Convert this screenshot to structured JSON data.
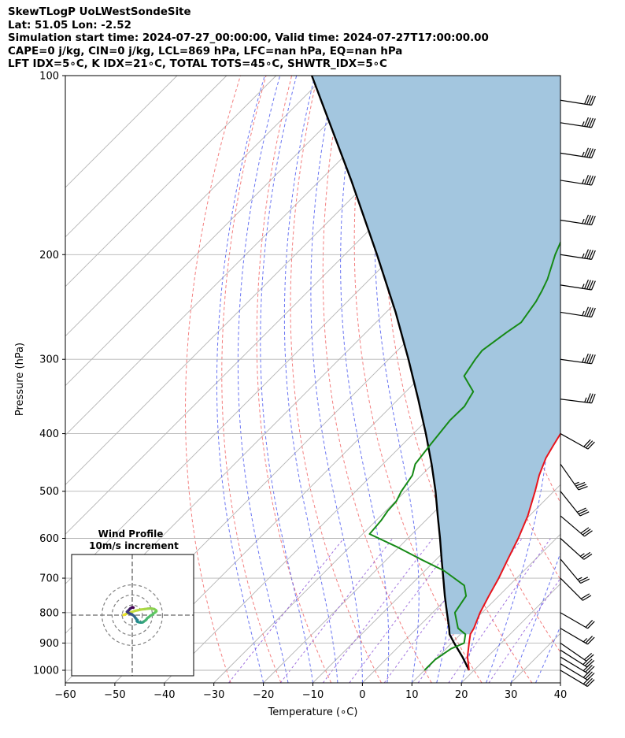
{
  "header": {
    "line1": "SkewTLogP UoLWestSondeSite",
    "line2": "Lat: 51.05   Lon: -2.52",
    "line3": "Simulation start time: 2024-07-27_00:00:00, Valid time: 2024-07-27T17:00:00.00",
    "line4": "CAPE=0 j/kg, CIN=0 j/kg, LCL=869 hPa, LFC=nan hPa, EQ=nan hPa",
    "line5": "LFT IDX=5∘C, K IDX=21∘C, TOTAL TOTS=45∘C, SHWTR_IDX=5∘C"
  },
  "chart_data": {
    "type": "skewt",
    "xlabel": "Temperature (∘C)",
    "ylabel": "Pressure (hPa)",
    "x_ticks": [
      -60,
      -50,
      -40,
      -30,
      -20,
      -10,
      0,
      10,
      20,
      30,
      40
    ],
    "x_tick_labels": [
      "−60",
      "−50",
      "−40",
      "−30",
      "−20",
      "−10",
      "0",
      "10",
      "20",
      "30",
      "40"
    ],
    "y_ticks": [
      100,
      200,
      300,
      400,
      500,
      600,
      700,
      800,
      900,
      1000
    ],
    "y_tick_labels": [
      "100",
      "200",
      "300",
      "400",
      "500",
      "600",
      "700",
      "800",
      "900",
      "1000"
    ],
    "xlim": [
      -60,
      40
    ],
    "ylim": [
      1050,
      100
    ],
    "y_scale": "log",
    "grid": true,
    "colors": {
      "temperature": "#e8141c",
      "dewpoint": "#168a16",
      "parcel": "#000000",
      "fill": "#a3c6df",
      "dry_adiabat": "#f27070",
      "moist_adiabat": "#4f5cf0",
      "mixing_ratio": "#8a4fd6",
      "isotherm": "#b4b4b4"
    },
    "series": [
      {
        "key": "temperature",
        "points": [
          [
            1000,
            19
          ],
          [
            950,
            16
          ],
          [
            900,
            13.5
          ],
          [
            870,
            12
          ],
          [
            850,
            11.5
          ],
          [
            800,
            9.6
          ],
          [
            750,
            8
          ],
          [
            700,
            6.4
          ],
          [
            650,
            4.4
          ],
          [
            600,
            2.3
          ],
          [
            550,
            -0.3
          ],
          [
            500,
            -3.8
          ],
          [
            470,
            -6.2
          ],
          [
            440,
            -8.3
          ],
          [
            420,
            -9.3
          ],
          [
            400,
            -10.3
          ],
          [
            380,
            -10.5
          ],
          [
            350,
            -12.1
          ],
          [
            320,
            -14.4
          ],
          [
            300,
            -15.4
          ],
          [
            280,
            -17.4
          ],
          [
            260,
            -19.7
          ],
          [
            240,
            -22.9
          ],
          [
            225,
            -25.7
          ],
          [
            210,
            -27.9
          ],
          [
            200,
            -29.8
          ],
          [
            190,
            -31.6
          ],
          [
            180,
            -34.2
          ],
          [
            170,
            -35.9
          ],
          [
            160,
            -37.6
          ],
          [
            150,
            -40.2
          ],
          [
            140,
            -43.2
          ],
          [
            130,
            -45.3
          ],
          [
            120,
            -48.2
          ],
          [
            110,
            -51.5
          ],
          [
            100,
            -54.3
          ]
        ]
      },
      {
        "key": "dewpoint",
        "points": [
          [
            1000,
            10
          ],
          [
            960,
            10
          ],
          [
            920,
            11
          ],
          [
            900,
            12.5
          ],
          [
            870,
            11
          ],
          [
            850,
            8.3
          ],
          [
            800,
            4.5
          ],
          [
            750,
            3.4
          ],
          [
            720,
            0.9
          ],
          [
            680,
            -6.2
          ],
          [
            650,
            -13.3
          ],
          [
            620,
            -20.5
          ],
          [
            590,
            -28.6
          ],
          [
            560,
            -29
          ],
          [
            540,
            -29.6
          ],
          [
            520,
            -29.8
          ],
          [
            500,
            -30.8
          ],
          [
            470,
            -31.8
          ],
          [
            450,
            -33.5
          ],
          [
            420,
            -34.3
          ],
          [
            400,
            -34.8
          ],
          [
            380,
            -35.3
          ],
          [
            360,
            -35.2
          ],
          [
            340,
            -36.4
          ],
          [
            320,
            -41.4
          ],
          [
            300,
            -42.5
          ],
          [
            290,
            -42.9
          ],
          [
            270,
            -41.6
          ],
          [
            260,
            -40.7
          ],
          [
            240,
            -41.9
          ],
          [
            230,
            -42.9
          ],
          [
            220,
            -44.1
          ],
          [
            200,
            -47.5
          ],
          [
            185,
            -49.8
          ],
          [
            175,
            -50.6
          ],
          [
            165,
            -50.7
          ],
          [
            155,
            -53.1
          ],
          [
            145,
            -56.2
          ],
          [
            135,
            -58.1
          ],
          [
            125,
            -59.4
          ],
          [
            115,
            -58.6
          ],
          [
            105,
            -56.6
          ],
          [
            100,
            -55.6
          ]
        ]
      },
      {
        "key": "parcel",
        "points": [
          [
            1000,
            19
          ],
          [
            950,
            15
          ],
          [
            900,
            10.5
          ],
          [
            870,
            7.8
          ],
          [
            850,
            6.5
          ],
          [
            800,
            2.9
          ],
          [
            750,
            -0.9
          ],
          [
            700,
            -4.8
          ],
          [
            650,
            -9
          ],
          [
            600,
            -13.5
          ],
          [
            550,
            -18.5
          ],
          [
            500,
            -23.9
          ],
          [
            450,
            -30.2
          ],
          [
            400,
            -37.5
          ],
          [
            350,
            -46
          ],
          [
            300,
            -56
          ],
          [
            250,
            -68.1
          ],
          [
            200,
            -83.5
          ],
          [
            150,
            -103.7
          ],
          [
            100,
            -132.8
          ]
        ]
      }
    ],
    "wind_barbs": {
      "pressures": [
        1000,
        975,
        950,
        925,
        900,
        850,
        800,
        700,
        650,
        600,
        550,
        500,
        450,
        400,
        350,
        300,
        250,
        225,
        200,
        175,
        150,
        135,
        120,
        110
      ],
      "units": "knots",
      "u": [
        -25.7,
        -25.7,
        -23.7,
        -21.7,
        -17.7,
        -22.7,
        -17.3,
        -15,
        -15,
        -20,
        -23.5,
        -19.3,
        -20.5,
        -26.8,
        -36.9,
        -46.8,
        -42.8,
        -42.8,
        -42.8,
        -42.8,
        -42.8,
        -42.8,
        -42.8,
        -41.7
      ],
      "v": [
        15.4,
        15.4,
        14.2,
        13.8,
        12.3,
        13.3,
        10,
        15,
        18,
        18,
        20,
        24.1,
        29.3,
        15,
        4.6,
        6.6,
        6.6,
        6.6,
        6.6,
        6.6,
        6.6,
        6.6,
        6.6,
        6.6
      ]
    },
    "hodograph": {
      "title_line1": "Wind Profile",
      "title_line2": "10m/s increment",
      "ring_radii_ms": [
        10,
        20,
        30
      ],
      "u_ms": [
        -8.5,
        -8.5,
        -7.2,
        -6.5,
        -5.3,
        -3.5,
        -0.5,
        2.5,
        5.8,
        8.4,
        12.5,
        15.4,
        17.2,
        19.3,
        21.8,
        23.5,
        24,
        23.5,
        22.4,
        21.1,
        20.5,
        19.2,
        17.5,
        16.6,
        15.5,
        14.4,
        13.9,
        12.6,
        11.5,
        11.1,
        10.5,
        9.9,
        9.3,
        8.4,
        8.1,
        7.8,
        6.1,
        5.5,
        5.1,
        4.8,
        4.6,
        5.2,
        4.6,
        3.9,
        3.8,
        3.2,
        3,
        2.7,
        2.4,
        2.1,
        1.8,
        1.4,
        0.9,
        0.3,
        -0.2,
        -0.9,
        -1.6,
        -2.5,
        -3.1,
        -3.7,
        -4.3,
        -4.8,
        -5.2,
        -4.6,
        -4.1,
        -3.5,
        -3,
        -2.6,
        -2.2,
        -1.9,
        -1.4,
        -1,
        -0.6,
        -0.3,
        0.4,
        0.9,
        1.2
      ],
      "v_ms": [
        0.2,
        0.2,
        0.6,
        1,
        1.6,
        2.3,
        3.1,
        4.2,
        4.9,
        5.5,
        6,
        6.4,
        6.6,
        6.5,
        6,
        4.9,
        4,
        3.3,
        2.5,
        1.6,
        0.9,
        0.1,
        -0.9,
        -1.9,
        -2.5,
        -3.6,
        -4.6,
        -5.6,
        -6.3,
        -6.7,
        -7.1,
        -7.2,
        -7.3,
        -7.3,
        -7.2,
        -7.2,
        -7,
        -6.6,
        -6.5,
        -6.3,
        -5.8,
        -4.9,
        -4.5,
        -3.8,
        -3.3,
        -2.9,
        -2.5,
        -2.1,
        -1.6,
        -1.2,
        -0.9,
        -0.5,
        -0.1,
        0.2,
        0.6,
        1,
        1.3,
        1.5,
        1.9,
        2.2,
        2.5,
        3.1,
        3.3,
        3.8,
        4.4,
        4.8,
        5.4,
        5.9,
        6.4,
        6.6,
        6.9,
        7.2,
        7.4,
        7.6,
        7.7,
        7.6,
        7.4
      ]
    }
  }
}
